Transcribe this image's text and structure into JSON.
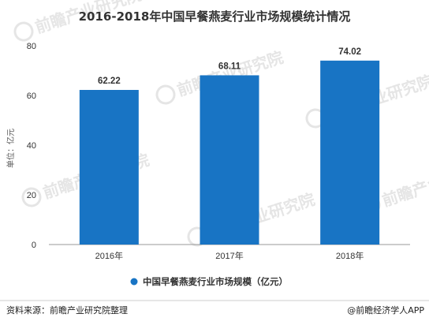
{
  "chart_data": {
    "type": "bar",
    "title": "2016-2018年中国早餐燕麦行业市场规模统计情况",
    "ylabel": "单位：亿元",
    "xlabel": "",
    "categories": [
      "2016年",
      "2017年",
      "2018年"
    ],
    "series": [
      {
        "name": "中国早餐燕麦行业市场规模（亿元）",
        "values": [
          62.22,
          68.11,
          74.02
        ],
        "color": "#1874c4"
      }
    ],
    "value_labels": [
      "62.22",
      "68.11",
      "74.02"
    ],
    "ylim": [
      0,
      80
    ],
    "yticks": [
      "0",
      "20",
      "40",
      "60",
      "80"
    ],
    "grid": false,
    "legend_position": "bottom"
  },
  "footer": {
    "source": "资料来源：前瞻产业研究院整理",
    "brand": "@前瞻经济学人APP"
  },
  "watermark": {
    "logo_mark": "前瞻产业研究院",
    "text": "前瞻产业研究院"
  }
}
